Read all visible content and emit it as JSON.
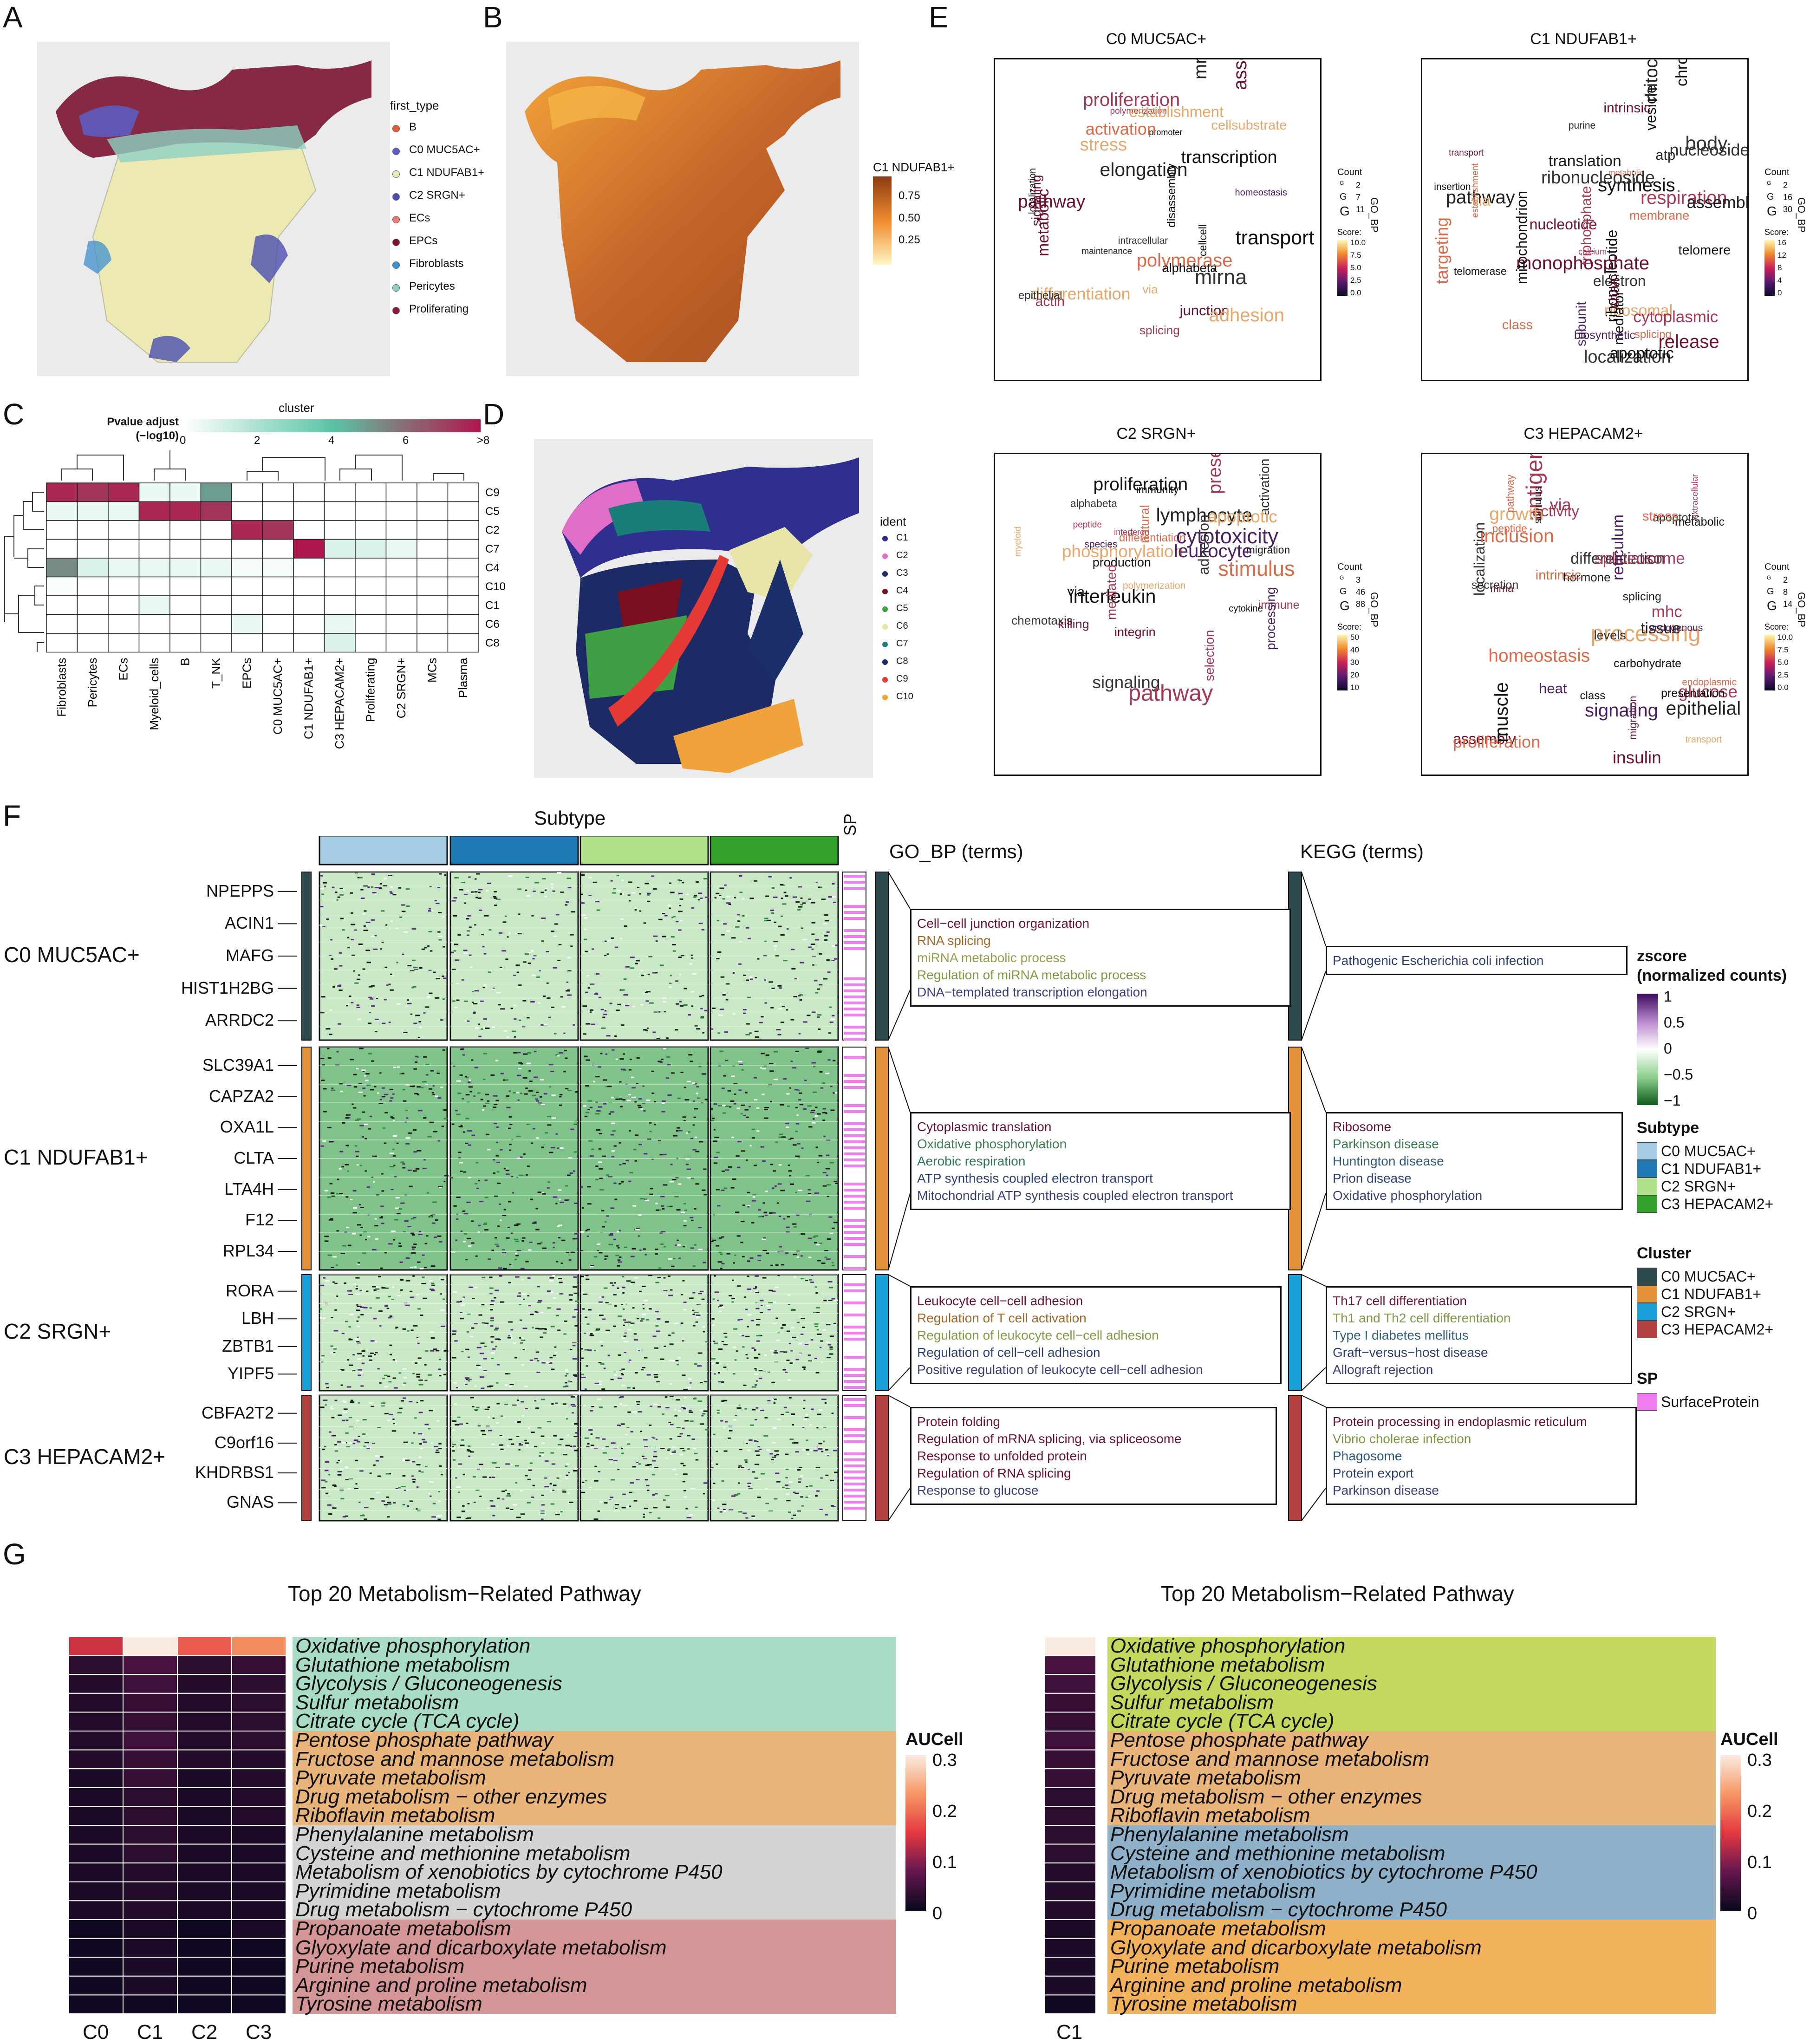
{
  "panels": {
    "A": {
      "letter": "A",
      "legend_title": "first_type",
      "items": [
        {
          "label": "B",
          "color": "#e05c3e"
        },
        {
          "label": "C0 MUC5AC+",
          "color": "#5b5fc7"
        },
        {
          "label": "C1 NDUFAB1+",
          "color": "#ece9b3"
        },
        {
          "label": "C2 SRGN+",
          "color": "#4a4fb0"
        },
        {
          "label": "ECs",
          "color": "#e87f7a"
        },
        {
          "label": "EPCs",
          "color": "#7a1530"
        },
        {
          "label": "Fibroblasts",
          "color": "#3d8fcf"
        },
        {
          "label": "Pericytes",
          "color": "#8fd1c4"
        },
        {
          "label": "Proliferating",
          "color": "#8b1a3c"
        }
      ]
    },
    "B": {
      "letter": "B",
      "legend_title": "C1 NDUFAB1+",
      "ticks": [
        "0.75",
        "0.50",
        "0.25"
      ]
    },
    "C": {
      "letter": "C",
      "legend_title": "cluster",
      "pv_title": "Pvalue adjust",
      "pv_sub": "(−log10)",
      "scale_ticks": [
        "0",
        "2",
        "4",
        "6",
        ">8"
      ],
      "rows": [
        "C9",
        "C5",
        "C2",
        "C7",
        "C4",
        "C10",
        "C1",
        "C6",
        "C8"
      ],
      "cols": [
        "Fibroblasts",
        "Pericytes",
        "ECs",
        "Myeloid_cells",
        "B",
        "T_NK",
        "EPCs",
        "C0 MUC5AC+",
        "C1 NDUFAB1+",
        "C3 HEPACAM2+",
        "Proliferating",
        "C2 SRGN+",
        "MCs",
        "Plasma"
      ],
      "cells": [
        [
          8.5,
          8,
          8.5,
          1,
          1,
          5,
          0,
          0,
          0,
          0,
          0,
          0,
          0,
          0
        ],
        [
          1,
          1,
          1,
          8.5,
          8.5,
          8,
          0,
          0,
          0,
          0,
          0,
          0,
          0,
          0
        ],
        [
          0,
          0,
          0,
          0,
          0,
          0,
          8.5,
          8,
          0,
          0,
          0,
          0,
          0,
          0
        ],
        [
          0,
          0,
          0,
          0,
          0,
          0,
          0,
          0,
          9,
          1.5,
          1.5,
          1,
          0,
          0
        ],
        [
          5.5,
          1.5,
          1,
          1,
          1,
          1,
          0.5,
          0.5,
          0,
          0,
          0,
          0,
          0,
          0
        ],
        [
          0.3,
          0,
          0,
          0,
          0,
          0,
          0,
          0,
          0,
          0,
          0,
          0,
          0,
          0
        ],
        [
          0,
          0,
          0,
          1,
          0,
          0,
          0,
          0,
          0,
          0,
          0,
          0,
          0,
          0
        ],
        [
          0,
          0,
          0,
          0,
          0,
          0,
          1,
          0,
          0,
          1,
          0,
          0,
          0,
          0
        ],
        [
          0,
          0,
          0,
          0,
          0,
          0,
          0,
          0,
          0,
          1.5,
          0,
          0,
          0,
          0
        ]
      ]
    },
    "D": {
      "letter": "D",
      "legend_title": "ident",
      "items": [
        {
          "label": "C1",
          "color": "#2f2f8f"
        },
        {
          "label": "C2",
          "color": "#e06ec7"
        },
        {
          "label": "C3",
          "color": "#1c2a66"
        },
        {
          "label": "C4",
          "color": "#7a0f1f"
        },
        {
          "label": "C5",
          "color": "#3f9f45"
        },
        {
          "label": "C6",
          "color": "#e8e3a7"
        },
        {
          "label": "C7",
          "color": "#1a7d7a"
        },
        {
          "label": "C8",
          "color": "#1a2f6b"
        },
        {
          "label": "C9",
          "color": "#e53935"
        },
        {
          "label": "C10",
          "color": "#f0a23b"
        }
      ]
    },
    "E": {
      "letter": "E",
      "side_label": "GO_BP",
      "count_label": "Count",
      "score_label": "Score:",
      "clouds": [
        {
          "title": "C0 MUC5AC+",
          "counts": [
            "2",
            "7",
            "11"
          ],
          "score_ticks": [
            "10.0",
            "7.5",
            "5.0",
            "2.5",
            "0.0"
          ],
          "words": [
            "transport",
            "pathway",
            "differentiation",
            "maintenance",
            "localization",
            "homeostasis",
            "polymerase",
            "stress",
            "assembly",
            "alphabeta",
            "cellcell",
            "actin",
            "junction",
            "splicing",
            "mirna",
            "cellsubstrate",
            "mrna",
            "adhesion",
            "epithelial",
            "polymerization",
            "elongation",
            "via",
            "transcription",
            "promoter",
            "activation",
            "disassembly",
            "intracellular",
            "establishment",
            "proliferation",
            "signaling",
            "metabolic"
          ]
        },
        {
          "title": "C1 NDUFAB1+",
          "counts": [
            "2",
            "16",
            "30"
          ],
          "score_ticks": [
            "16",
            "12",
            "8",
            "4",
            "0"
          ],
          "words": [
            "pathway",
            "metabolic",
            "membrane",
            "nucleotide",
            "insertion",
            "ribosomal",
            "synthesis",
            "body",
            "calcium",
            "chromosome",
            "ribonucleotide",
            "subunit",
            "monophosphate",
            "establishment",
            "mediator",
            "nucleoside",
            "purine",
            "telomerase",
            "splicing",
            "release",
            "vesicle",
            "targeting",
            "class",
            "telomere",
            "chain",
            "mitochondrial",
            "localization",
            "atp",
            "triphosphate",
            "respiration",
            "intrinsic",
            "electron",
            "apoptotic",
            "via",
            "transport",
            "mitochondrion",
            "ribonucleoside",
            "assembly",
            "cytoplasmic",
            "biosynthetic",
            "translation"
          ]
        },
        {
          "title": "C2 SRGN+",
          "counts": [
            "3",
            "46",
            "88"
          ],
          "score_ticks": [
            "50",
            "40",
            "30",
            "20",
            "10"
          ],
          "words": [
            "phosphorylation",
            "species",
            "interferon",
            "polymerization",
            "migration",
            "differentiation",
            "presentation",
            "cytotoxicity",
            "peptide",
            "interleukin",
            "lymphocyte",
            "activation",
            "immune",
            "apoptotic",
            "leukocyte",
            "myeloid",
            "production",
            "mediated",
            "immunity",
            "signaling",
            "alphabeta",
            "pathway",
            "cytokine",
            "proliferation",
            "chemotaxis",
            "processing",
            "adhesion",
            "via",
            "stimulus",
            "natural",
            "killing",
            "integrin",
            "selection"
          ]
        },
        {
          "title": "C3 HEPACAM2+",
          "counts": [
            "2",
            "8",
            "14"
          ],
          "score_ticks": [
            "10.0",
            "7.5",
            "5.0",
            "2.5",
            "0.0"
          ],
          "words": [
            "activity",
            "metabolic",
            "assembly",
            "differentiation",
            "apoptotic",
            "homeostasis",
            "epithelial",
            "antigen",
            "endoplasmic",
            "class",
            "hormone",
            "intrinsic",
            "spliceosome",
            "heat",
            "processing",
            "secretion",
            "localization",
            "reticulum",
            "peptide",
            "tissue",
            "insulin",
            "glucose",
            "via",
            "splicing",
            "stimulus",
            "inclusion",
            "presentation",
            "levels",
            "proliferation",
            "growth",
            "migration",
            "mrna",
            "endogenous",
            "mhc",
            "carbohydrate",
            "stress",
            "extracellular",
            "signaling",
            "muscle",
            "pathway",
            "transport"
          ]
        }
      ]
    },
    "F": {
      "letter": "F",
      "subtype_label": "Subtype",
      "sp_label": "SP",
      "gobp_header": "GO_BP (terms)",
      "kegg_header": "KEGG (terms)",
      "clusters": [
        {
          "label": "C0 MUC5AC+",
          "color": "#2d4a4e",
          "genes": [
            "NPEPPS",
            "ACIN1",
            "MAFG",
            "HIST1H2BG",
            "ARRDC2"
          ],
          "gobp": [
            {
              "t": "Cell−cell junction organization",
              "c": "#6b1230"
            },
            {
              "t": "RNA splicing",
              "c": "#a0692a"
            },
            {
              "t": "miRNA metabolic process",
              "c": "#8ea44a"
            },
            {
              "t": "Regulation of miRNA metabolic process",
              "c": "#7f9a45"
            },
            {
              "t": "DNA−templated transcription elongation",
              "c": "#3a3f7a"
            }
          ],
          "kegg": [
            {
              "t": "Pathogenic Escherichia coli infection",
              "c": "#2e3f73"
            }
          ]
        },
        {
          "label": "C1 NDUFAB1+",
          "color": "#e3913b",
          "genes": [
            "SLC39A1",
            "CAPZA2",
            "OXA1L",
            "CLTA",
            "LTA4H",
            "F12",
            "RPL34"
          ],
          "gobp": [
            {
              "t": "Cytoplasmic translation",
              "c": "#6b1230"
            },
            {
              "t": "Oxidative phosphorylation",
              "c": "#3d7a55"
            },
            {
              "t": "Aerobic respiration",
              "c": "#2f7a58"
            },
            {
              "t": "ATP synthesis coupled electron transport",
              "c": "#2e3f73"
            },
            {
              "t": "Mitochondrial ATP synthesis coupled electron transport",
              "c": "#3a3f7a"
            }
          ],
          "kegg": [
            {
              "t": "Ribosome",
              "c": "#6b1230"
            },
            {
              "t": "Parkinson disease",
              "c": "#3d7a55"
            },
            {
              "t": "Huntington disease",
              "c": "#2e5a7a"
            },
            {
              "t": "Prion disease",
              "c": "#2e3f73"
            },
            {
              "t": "Oxidative phosphorylation",
              "c": "#3a3f7a"
            }
          ]
        },
        {
          "label": "C2 SRGN+",
          "color": "#1aa0d8",
          "genes": [
            "RORA",
            "LBH",
            "ZBTB1",
            "YIPF5"
          ],
          "gobp": [
            {
              "t": "Leukocyte cell−cell adhesion",
              "c": "#6b1230"
            },
            {
              "t": "Regulation of T cell activation",
              "c": "#a0692a"
            },
            {
              "t": "Regulation of leukocyte cell−cell adhesion",
              "c": "#7f9a45"
            },
            {
              "t": "Regulation of cell−cell adhesion",
              "c": "#2e3f73"
            },
            {
              "t": "Positive regulation of leukocyte cell−cell adhesion",
              "c": "#3a3f7a"
            }
          ],
          "kegg": [
            {
              "t": "Th17 cell differentiation",
              "c": "#6b1230"
            },
            {
              "t": "Th1 and Th2 cell differentiation",
              "c": "#7f9a45"
            },
            {
              "t": "Type I diabetes mellitus",
              "c": "#2e5a7a"
            },
            {
              "t": "Graft−versus−host disease",
              "c": "#2e3f73"
            },
            {
              "t": "Allograft rejection",
              "c": "#3a3f7a"
            }
          ]
        },
        {
          "label": "C3 HEPACAM2+",
          "color": "#b0413e",
          "genes": [
            "CBFA2T2",
            "C9orf16",
            "KHDRBS1",
            "GNAS"
          ],
          "gobp": [
            {
              "t": "Protein folding",
              "c": "#6b1230"
            },
            {
              "t": "Regulation of mRNA splicing, via spliceosome",
              "c": "#6b1230"
            },
            {
              "t": "Response to unfolded protein",
              "c": "#6b1230"
            },
            {
              "t": "Regulation of RNA splicing",
              "c": "#6b1230"
            },
            {
              "t": "Response to glucose",
              "c": "#3a3f7a"
            }
          ],
          "kegg": [
            {
              "t": "Protein processing in endoplasmic reticulum",
              "c": "#6b1230"
            },
            {
              "t": "Vibrio cholerae infection",
              "c": "#7f9a45"
            },
            {
              "t": "Phagosome",
              "c": "#2e5a7a"
            },
            {
              "t": "Protein export",
              "c": "#2e3f73"
            },
            {
              "t": "Parkinson disease",
              "c": "#3a3f7a"
            }
          ]
        }
      ],
      "subtype_colors": [
        "#a6cde3",
        "#1f78b4",
        "#b2df8a",
        "#33a02c"
      ],
      "legend": {
        "zscore_title": "zscore",
        "zscore_sub": "(normalized counts)",
        "zscore_ticks": [
          "1",
          "0.5",
          "0",
          "−0.5",
          "−1"
        ],
        "subtype_title": "Subtype",
        "subtype_items": [
          "C0 MUC5AC+",
          "C1 NDUFAB1+",
          "C2 SRGN+",
          "C3 HEPACAM2+"
        ],
        "cluster_title": "Cluster",
        "cluster_items": [
          "C0 MUC5AC+",
          "C1 NDUFAB1+",
          "C2 SRGN+",
          "C3 HEPACAM2+"
        ],
        "sp_title": "SP",
        "sp_item": "SurfaceProtein",
        "sp_color": "#f07ef0"
      }
    },
    "G": {
      "letter": "G",
      "left_title": "Top 20 Metabolism−Related Pathway",
      "right_title": "Top 20 Metabolism−Related Pathway",
      "auc_title": "AUCell",
      "auc_ticks": [
        "0.3",
        "0.2",
        "0.1",
        "0"
      ],
      "left_cols": [
        "C0",
        "C1",
        "C2",
        "C3"
      ],
      "right_cols": [
        "C1"
      ],
      "pathways": [
        "Oxidative phosphorylation",
        "Glutathione metabolism",
        "Glycolysis / Gluconeogenesis",
        "Sulfur metabolism",
        "Citrate cycle (TCA cycle)",
        "Pentose phosphate pathway",
        "Fructose and mannose metabolism",
        "Pyruvate metabolism",
        "Drug metabolism − other enzymes",
        "Riboflavin metabolism",
        "Phenylalanine metabolism",
        "Cysteine and methionine metabolism",
        "Metabolism of xenobiotics by cytochrome P450",
        "Pyrimidine metabolism",
        "Drug metabolism − cytochrome P450",
        "Propanoate metabolism",
        "Glyoxylate and dicarboxylate metabolism",
        "Purine metabolism",
        "Arginine and proline metabolism",
        "Tyrosine metabolism"
      ],
      "left_group_colors": [
        "#a8dcc7",
        "#e8b47a",
        "#d4d4d4",
        "#d49596"
      ],
      "right_group_colors": [
        "#c2d95e",
        "#e8b47a",
        "#8fb0c9",
        "#f2b25c"
      ],
      "left_values": [
        [
          0.18,
          0.3,
          0.22,
          0.25
        ],
        [
          0.04,
          0.07,
          0.04,
          0.05
        ],
        [
          0.03,
          0.06,
          0.03,
          0.04
        ],
        [
          0.03,
          0.05,
          0.03,
          0.04
        ],
        [
          0.03,
          0.05,
          0.03,
          0.04
        ],
        [
          0.03,
          0.06,
          0.03,
          0.04
        ],
        [
          0.03,
          0.05,
          0.03,
          0.03
        ],
        [
          0.02,
          0.05,
          0.02,
          0.03
        ],
        [
          0.02,
          0.04,
          0.02,
          0.03
        ],
        [
          0.02,
          0.04,
          0.02,
          0.03
        ],
        [
          0.02,
          0.04,
          0.02,
          0.02
        ],
        [
          0.02,
          0.04,
          0.02,
          0.02
        ],
        [
          0.02,
          0.03,
          0.02,
          0.02
        ],
        [
          0.02,
          0.03,
          0.02,
          0.02
        ],
        [
          0.02,
          0.03,
          0.02,
          0.02
        ],
        [
          0.01,
          0.02,
          0.01,
          0.02
        ],
        [
          0.01,
          0.02,
          0.01,
          0.01
        ],
        [
          0.01,
          0.02,
          0.01,
          0.01
        ],
        [
          0.01,
          0.02,
          0.01,
          0.01
        ],
        [
          0.01,
          0.01,
          0.01,
          0.01
        ]
      ],
      "right_values": [
        0.3,
        0.07,
        0.06,
        0.05,
        0.05,
        0.06,
        0.05,
        0.05,
        0.04,
        0.04,
        0.04,
        0.04,
        0.03,
        0.03,
        0.03,
        0.02,
        0.02,
        0.02,
        0.02,
        0.01
      ]
    }
  }
}
